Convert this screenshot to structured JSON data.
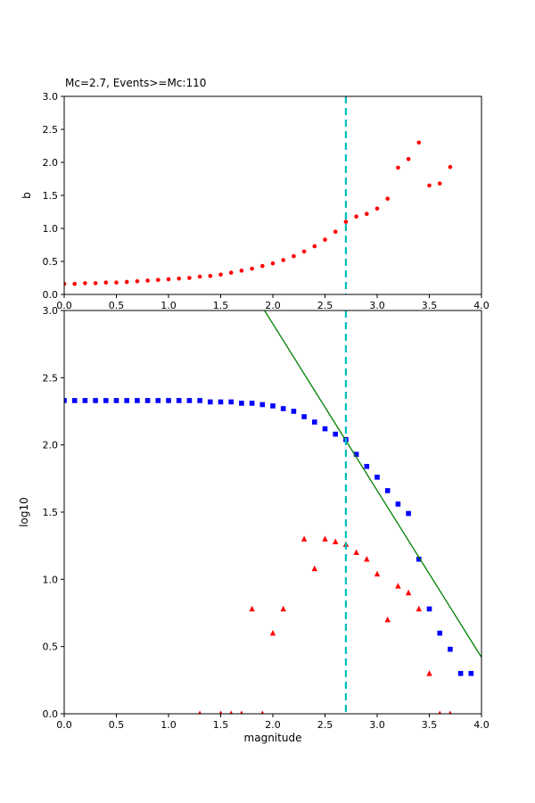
{
  "chart_data": [
    {
      "type": "scatter",
      "title": "Mc=2.7, Events>=Mc:110",
      "xlabel": "",
      "ylabel": "b",
      "xlim": [
        0.0,
        4.0
      ],
      "ylim": [
        0.0,
        3.0
      ],
      "xticks": [
        0.0,
        0.5,
        1.0,
        1.5,
        2.0,
        2.5,
        3.0,
        3.5,
        4.0
      ],
      "yticks": [
        0.0,
        0.5,
        1.0,
        1.5,
        2.0,
        2.5,
        3.0
      ],
      "grid": false,
      "legend": "none",
      "series": [
        {
          "name": "b-value-vs-cutoff-magnitude",
          "marker": "circle",
          "color": "#ff0000",
          "x": [
            0.0,
            0.1,
            0.2,
            0.3,
            0.4,
            0.5,
            0.6,
            0.7,
            0.8,
            0.9,
            1.0,
            1.1,
            1.2,
            1.3,
            1.4,
            1.5,
            1.6,
            1.7,
            1.8,
            1.9,
            2.0,
            2.1,
            2.2,
            2.3,
            2.4,
            2.5,
            2.6,
            2.7,
            2.8,
            2.9,
            3.0,
            3.1,
            3.2,
            3.3,
            3.4,
            3.5,
            3.6,
            3.7
          ],
          "y": [
            0.16,
            0.16,
            0.17,
            0.17,
            0.18,
            0.18,
            0.19,
            0.2,
            0.21,
            0.22,
            0.23,
            0.24,
            0.25,
            0.27,
            0.28,
            0.3,
            0.33,
            0.36,
            0.39,
            0.43,
            0.47,
            0.52,
            0.58,
            0.65,
            0.73,
            0.83,
            0.95,
            1.1,
            1.18,
            1.22,
            1.3,
            1.45,
            1.92,
            2.05,
            2.3,
            1.65,
            1.68,
            1.93
          ]
        },
        {
          "name": "mc-cutoff-line",
          "type": "vline",
          "color": "#00bfbf",
          "dash": true,
          "x": 2.7
        }
      ]
    },
    {
      "type": "scatter",
      "title": "",
      "xlabel": "magnitude",
      "ylabel": "log10",
      "xlim": [
        0.0,
        4.0
      ],
      "ylim": [
        0.0,
        3.0
      ],
      "xticks": [
        0.0,
        0.5,
        1.0,
        1.5,
        2.0,
        2.5,
        3.0,
        3.5,
        4.0
      ],
      "yticks": [
        0.0,
        0.5,
        1.0,
        1.5,
        2.0,
        2.5,
        3.0
      ],
      "grid": false,
      "legend": "none",
      "series": [
        {
          "name": "cumulative-event-count-log10",
          "marker": "square",
          "color": "#0000ff",
          "x": [
            0.0,
            0.1,
            0.2,
            0.3,
            0.4,
            0.5,
            0.6,
            0.7,
            0.8,
            0.9,
            1.0,
            1.1,
            1.2,
            1.3,
            1.4,
            1.5,
            1.6,
            1.7,
            1.8,
            1.9,
            2.0,
            2.1,
            2.2,
            2.3,
            2.4,
            2.5,
            2.6,
            2.7,
            2.8,
            2.9,
            3.0,
            3.1,
            3.2,
            3.3,
            3.4,
            3.5,
            3.6,
            3.7,
            3.8,
            3.9
          ],
          "y": [
            2.33,
            2.33,
            2.33,
            2.33,
            2.33,
            2.33,
            2.33,
            2.33,
            2.33,
            2.33,
            2.33,
            2.33,
            2.33,
            2.33,
            2.32,
            2.32,
            2.32,
            2.31,
            2.31,
            2.3,
            2.29,
            2.27,
            2.25,
            2.21,
            2.17,
            2.12,
            2.08,
            2.04,
            1.93,
            1.84,
            1.76,
            1.66,
            1.56,
            1.49,
            1.15,
            0.78,
            0.6,
            0.48,
            0.3,
            0.3
          ]
        },
        {
          "name": "binned-event-count-log10",
          "marker": "triangle",
          "color": "#ff0000",
          "x": [
            1.3,
            1.5,
            1.6,
            1.7,
            1.8,
            1.9,
            2.0,
            2.1,
            2.3,
            2.4,
            2.5,
            2.6,
            2.7,
            2.8,
            2.9,
            3.0,
            3.1,
            3.2,
            3.3,
            3.4,
            3.5,
            3.6,
            3.7
          ],
          "y": [
            0.0,
            0.0,
            0.0,
            0.0,
            0.78,
            0.0,
            0.6,
            0.78,
            1.3,
            1.08,
            1.3,
            1.28,
            1.26,
            1.2,
            1.15,
            1.04,
            0.7,
            0.95,
            0.9,
            0.78,
            0.3,
            0.0,
            0.0
          ]
        },
        {
          "name": "gutenberg-richter-fit-line",
          "type": "line",
          "color": "#008000",
          "x": [
            1.92,
            4.0
          ],
          "y": [
            3.0,
            0.42
          ]
        },
        {
          "name": "mc-cutoff-line",
          "type": "vline",
          "color": "#00bfbf",
          "dash": true,
          "x": 2.7
        }
      ]
    }
  ]
}
